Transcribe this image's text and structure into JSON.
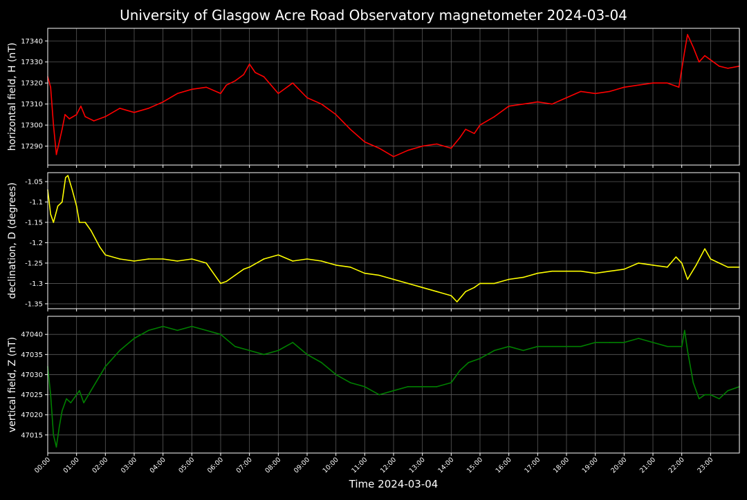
{
  "title": "University of Glasgow Acre Road Observatory magnetometer 2024-03-04",
  "xlabel": "Time 2024-03-04",
  "colors": {
    "background": "#000000",
    "grid": "#5a5a5a",
    "axes": "#ffffff"
  },
  "chart_data": [
    {
      "type": "line",
      "panel": "top",
      "ylabel": "horizontal field, H (nT)",
      "color": "#ff0000",
      "xlim": [
        0,
        24
      ],
      "ylim": [
        17281,
        17346
      ],
      "yticks": [
        17290,
        17300,
        17310,
        17320,
        17330,
        17340
      ],
      "x": [
        0.0,
        0.1,
        0.2,
        0.3,
        0.4,
        0.5,
        0.6,
        0.75,
        1.0,
        1.15,
        1.3,
        1.6,
        2.0,
        2.5,
        3.0,
        3.5,
        4.0,
        4.5,
        5.0,
        5.5,
        6.0,
        6.2,
        6.5,
        6.8,
        7.0,
        7.2,
        7.5,
        8.0,
        8.5,
        9.0,
        9.5,
        10.0,
        10.5,
        11.0,
        11.5,
        12.0,
        12.5,
        13.0,
        13.5,
        14.0,
        14.3,
        14.5,
        14.8,
        15.0,
        15.5,
        16.0,
        16.5,
        17.0,
        17.5,
        18.0,
        18.5,
        19.0,
        19.5,
        20.0,
        20.5,
        21.0,
        21.5,
        21.9,
        22.1,
        22.2,
        22.4,
        22.6,
        22.8,
        23.0,
        23.3,
        23.6,
        24.0
      ],
      "y": [
        17323,
        17318,
        17300,
        17286,
        17292,
        17298,
        17305,
        17303,
        17305,
        17309,
        17304,
        17302,
        17304,
        17308,
        17306,
        17308,
        17311,
        17315,
        17317,
        17318,
        17315,
        17319,
        17321,
        17324,
        17329,
        17325,
        17323,
        17315,
        17320,
        17313,
        17310,
        17305,
        17298,
        17292,
        17289,
        17285,
        17288,
        17290,
        17291,
        17289,
        17294,
        17298,
        17296,
        17300,
        17304,
        17309,
        17310,
        17311,
        17310,
        17313,
        17316,
        17315,
        17316,
        17318,
        17319,
        17320,
        17320,
        17318,
        17335,
        17343,
        17337,
        17330,
        17333,
        17331,
        17328,
        17327,
        17328
      ]
    },
    {
      "type": "line",
      "panel": "middle",
      "ylabel": "declination, D (degrees)",
      "color": "#ffff00",
      "xlim": [
        0,
        24
      ],
      "ylim": [
        -1.362,
        -1.028
      ],
      "yticks": [
        -1.05,
        -1.1,
        -1.15,
        -1.2,
        -1.25,
        -1.3,
        -1.35
      ],
      "x": [
        0.0,
        0.1,
        0.2,
        0.35,
        0.5,
        0.62,
        0.7,
        0.85,
        1.0,
        1.1,
        1.3,
        1.5,
        1.8,
        2.0,
        2.5,
        3.0,
        3.5,
        4.0,
        4.5,
        5.0,
        5.5,
        6.0,
        6.2,
        6.5,
        6.8,
        7.0,
        7.5,
        8.0,
        8.5,
        9.0,
        9.5,
        10.0,
        10.5,
        11.0,
        11.5,
        12.0,
        12.5,
        13.0,
        13.5,
        14.0,
        14.2,
        14.5,
        14.8,
        15.0,
        15.5,
        16.0,
        16.5,
        17.0,
        17.5,
        18.0,
        18.5,
        19.0,
        19.5,
        20.0,
        20.5,
        21.0,
        21.5,
        21.8,
        22.0,
        22.2,
        22.5,
        22.8,
        23.0,
        23.3,
        23.6,
        24.0
      ],
      "y": [
        -1.07,
        -1.13,
        -1.15,
        -1.11,
        -1.1,
        -1.04,
        -1.035,
        -1.07,
        -1.11,
        -1.15,
        -1.15,
        -1.17,
        -1.21,
        -1.23,
        -1.24,
        -1.245,
        -1.24,
        -1.24,
        -1.245,
        -1.24,
        -1.25,
        -1.3,
        -1.295,
        -1.28,
        -1.265,
        -1.26,
        -1.24,
        -1.23,
        -1.245,
        -1.24,
        -1.245,
        -1.255,
        -1.26,
        -1.275,
        -1.28,
        -1.29,
        -1.3,
        -1.31,
        -1.32,
        -1.33,
        -1.345,
        -1.32,
        -1.31,
        -1.3,
        -1.3,
        -1.29,
        -1.285,
        -1.275,
        -1.27,
        -1.27,
        -1.27,
        -1.275,
        -1.27,
        -1.265,
        -1.25,
        -1.255,
        -1.26,
        -1.235,
        -1.25,
        -1.29,
        -1.255,
        -1.215,
        -1.24,
        -1.25,
        -1.26,
        -1.26
      ]
    },
    {
      "type": "line",
      "panel": "bottom",
      "ylabel": "vertical field, Z (nT)",
      "color": "#008000",
      "xlim": [
        0,
        24
      ],
      "ylim": [
        47010.5,
        47044.5
      ],
      "yticks": [
        47015,
        47020,
        47025,
        47030,
        47035,
        47040
      ],
      "x": [
        0.0,
        0.1,
        0.2,
        0.3,
        0.4,
        0.5,
        0.65,
        0.8,
        1.0,
        1.1,
        1.25,
        1.5,
        2.0,
        2.5,
        3.0,
        3.5,
        4.0,
        4.5,
        5.0,
        5.5,
        6.0,
        6.5,
        7.0,
        7.5,
        8.0,
        8.5,
        9.0,
        9.5,
        10.0,
        10.5,
        11.0,
        11.5,
        12.0,
        12.5,
        13.0,
        13.5,
        14.0,
        14.3,
        14.6,
        15.0,
        15.5,
        16.0,
        16.5,
        17.0,
        17.5,
        18.0,
        18.5,
        19.0,
        19.5,
        20.0,
        20.5,
        21.0,
        21.5,
        21.8,
        22.0,
        22.1,
        22.2,
        22.4,
        22.6,
        22.8,
        23.0,
        23.3,
        23.6,
        24.0
      ],
      "y": [
        47032,
        47025,
        47015,
        47012,
        47017,
        47021,
        47024,
        47023,
        47025,
        47026,
        47023,
        47026,
        47032,
        47036,
        47039,
        47041,
        47042,
        47041,
        47042,
        47041,
        47040,
        47037,
        47036,
        47035,
        47036,
        47038,
        47035,
        47033,
        47030,
        47028,
        47027,
        47025,
        47026,
        47027,
        47027,
        47027,
        47028,
        47031,
        47033,
        47034,
        47036,
        47037,
        47036,
        47037,
        47037,
        47037,
        47037,
        47038,
        47038,
        47038,
        47039,
        47038,
        47037,
        47037,
        47037,
        47041,
        47036,
        47028,
        47024,
        47025,
        47025,
        47024,
        47026,
        47027
      ]
    }
  ],
  "xticks": [
    "00:00",
    "01:00",
    "02:00",
    "03:00",
    "04:00",
    "05:00",
    "06:00",
    "07:00",
    "08:00",
    "09:00",
    "10:00",
    "11:00",
    "12:00",
    "13:00",
    "14:00",
    "15:00",
    "16:00",
    "17:00",
    "18:00",
    "19:00",
    "20:00",
    "21:00",
    "22:00",
    "23:00"
  ]
}
